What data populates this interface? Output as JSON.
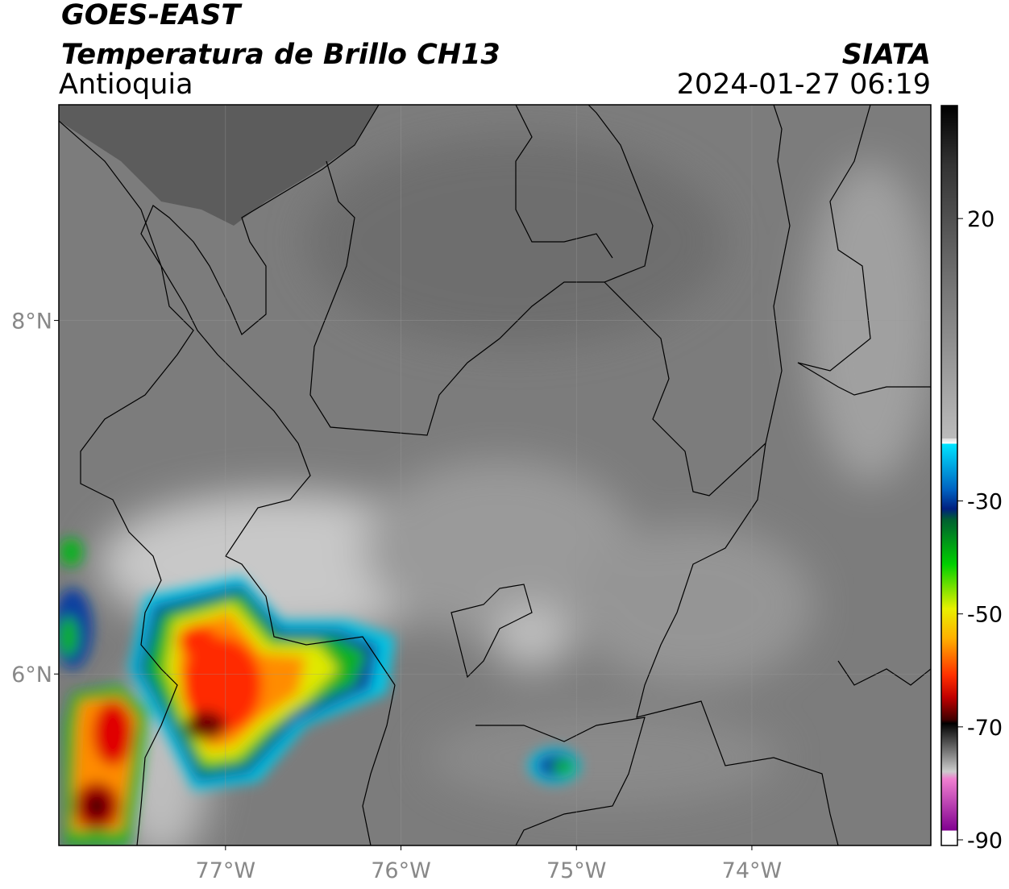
{
  "header": {
    "satellite": "GOES-EAST",
    "title": "Temperatura de Brillo CH13",
    "region": "Antioquia",
    "source": "SIATA",
    "datetime": "2024-01-27 06:19"
  },
  "map": {
    "xlim": [
      -77.95,
      -72.98
    ],
    "ylim": [
      5.03,
      9.22
    ],
    "xticks": [
      {
        "value": -77,
        "label": "77°W"
      },
      {
        "value": -76,
        "label": "76°W"
      },
      {
        "value": -75,
        "label": "75°W"
      },
      {
        "value": -74,
        "label": "74°W"
      }
    ],
    "yticks": [
      {
        "value": 6,
        "label": "6°N"
      },
      {
        "value": 8,
        "label": "8°N"
      }
    ]
  },
  "colorbar": {
    "lim": [
      -91,
      40
    ],
    "ticks": [
      20,
      -30,
      -50,
      -70,
      -90
    ]
  }
}
